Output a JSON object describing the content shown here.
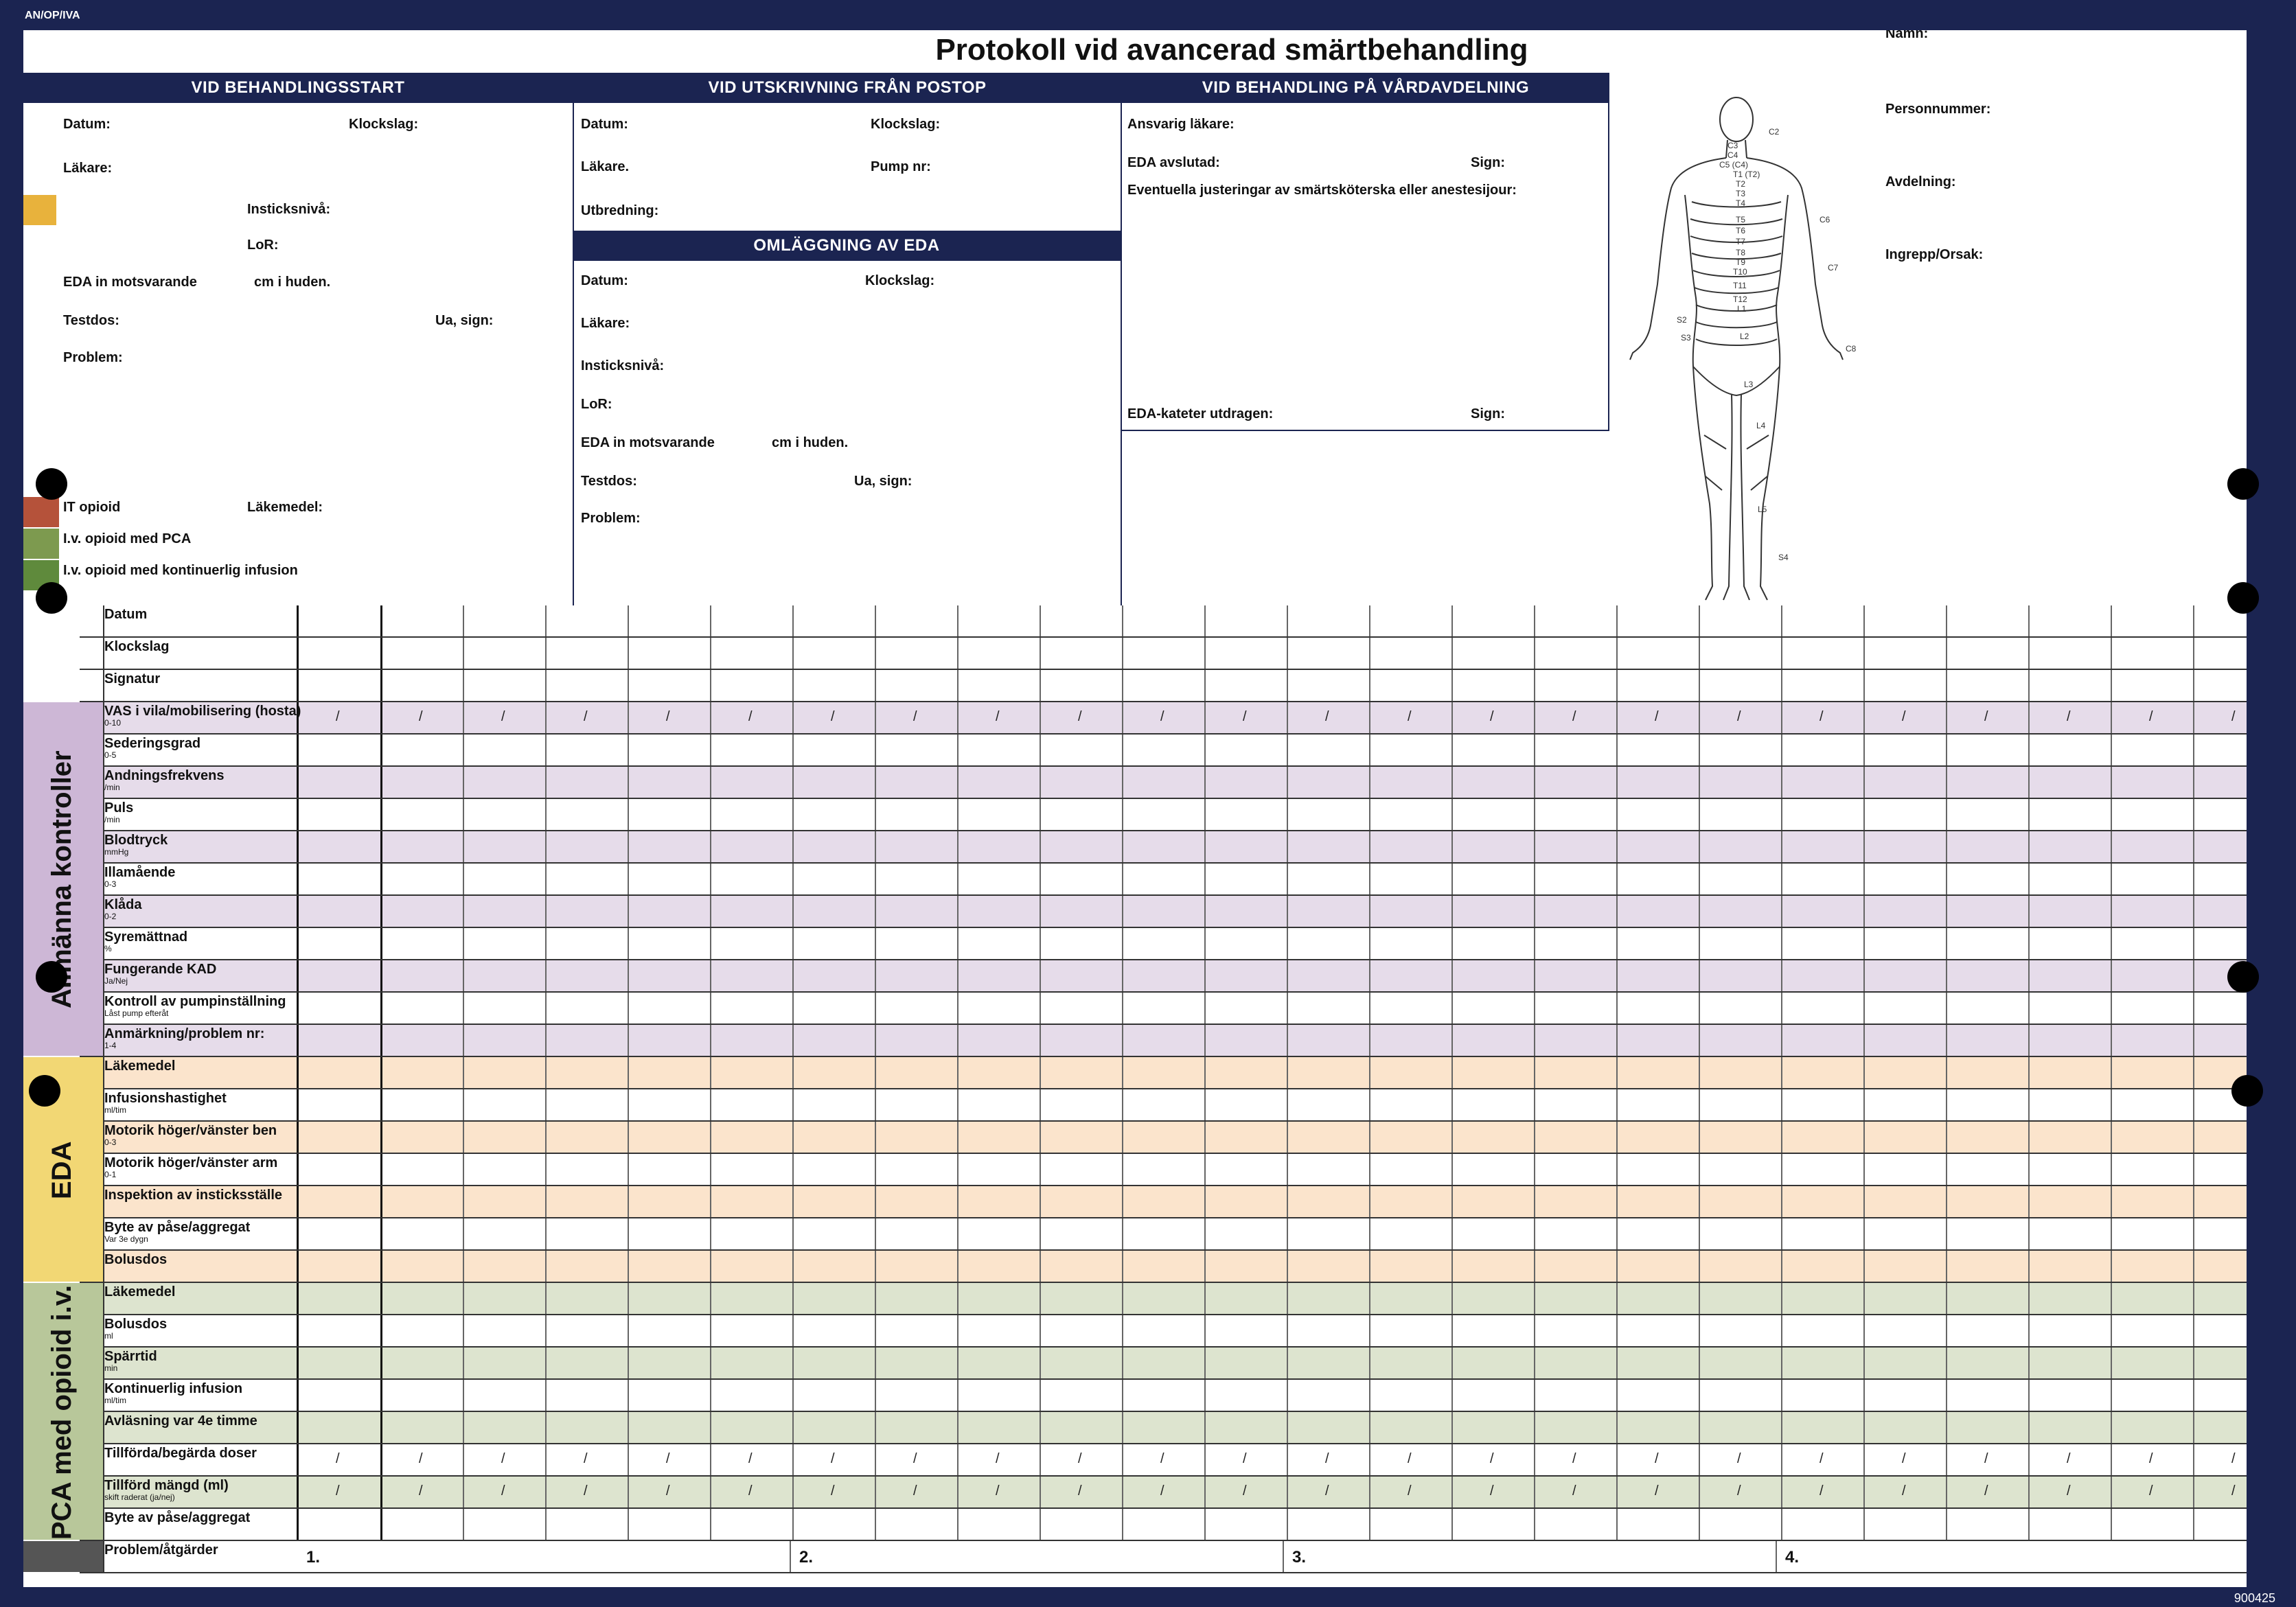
{
  "doc_code": "AN/OP/IVA",
  "footer_code": "900425",
  "title": "Protokoll vid avancerad smärtbehandling",
  "patient": {
    "namn": "Namn:",
    "personnummer": "Personnummer:",
    "avdelning": "Avdelning:",
    "ingrepp": "Ingrepp/Orsak:"
  },
  "start": {
    "header": "VID BEHANDLINGSSTART",
    "datum": "Datum:",
    "klockslag": "Klockslag:",
    "lakare": "Läkare:",
    "insticksniva": "Insticksnivå:",
    "lor": "LoR:",
    "eda_in": "EDA in motsvarande",
    "cm_huden": "cm i huden.",
    "testdos": "Testdos:",
    "ua_sign": "Ua, sign:",
    "problem": "Problem:",
    "it_opioid": "IT opioid",
    "lakemedel": "Läkemedel:",
    "iv_pca": "I.v. opioid med PCA",
    "iv_kont": "I.v. opioid med kontinuerlig infusion"
  },
  "postop": {
    "header": "VID UTSKRIVNING FRÅN POSTOP",
    "datum": "Datum:",
    "klockslag": "Klockslag:",
    "lakare": "Läkare.",
    "pump": "Pump nr:",
    "utbredning": "Utbredning:"
  },
  "omlaggning": {
    "header": "OMLÄGGNING AV EDA",
    "datum": "Datum:",
    "klockslag": "Klockslag:",
    "lakare": "Läkare:",
    "insticksniva": "Insticksnivå:",
    "lor": "LoR:",
    "eda_in": "EDA in motsvarande",
    "cm_huden": "cm i huden.",
    "testdos": "Testdos:",
    "ua_sign": "Ua, sign:",
    "problem": "Problem:"
  },
  "vard": {
    "header": "VID BEHANDLING PÅ VÅRDAVDELNING",
    "ansvarig": "Ansvarig läkare:",
    "eda_avslutad": "EDA avslutad:",
    "sign": "Sign:",
    "justeringar": "Eventuella justeringar av smärtsköterska eller anestesijour:",
    "kateter": "EDA-kateter utdragen:",
    "sign2": "Sign:"
  },
  "dermatomes": [
    "C2",
    "C3",
    "C4",
    "C5 (C4)",
    "T1 (T2)",
    "T2",
    "T3",
    "T4",
    "T5",
    "T6",
    "T7",
    "T8",
    "T9",
    "T10",
    "T11",
    "T12",
    "L1",
    "L2",
    "L3",
    "L4",
    "L5",
    "S2",
    "S3",
    "S4",
    "C6",
    "C7",
    "C8"
  ],
  "colors": {
    "navy": "#1b2451",
    "purple": "#e6dcea",
    "orange": "#fbe4cc",
    "green": "#dde4cf",
    "it_swatch": "#b5523a",
    "pca_swatch": "#7d9a4f",
    "kont_swatch": "#5f8a3c",
    "eda_swatch": "#e8b23c",
    "section_purple": "#cdb7d6",
    "section_yellow": "#f2d774",
    "section_green": "#b8c79a"
  },
  "sections": {
    "allmanna": "Allmänna kontroller",
    "eda": "EDA",
    "pca": "PCA med opioid i.v."
  },
  "rows": [
    {
      "label": "Datum",
      "sub": ""
    },
    {
      "label": "Klockslag",
      "sub": ""
    },
    {
      "label": "Signatur",
      "sub": ""
    },
    {
      "label": "VAS i vila/mobilisering (hosta)",
      "sub": "0-10"
    },
    {
      "label": "Sederingsgrad",
      "sub": "0-5"
    },
    {
      "label": "Andningsfrekvens",
      "sub": "/min"
    },
    {
      "label": "Puls",
      "sub": "/min"
    },
    {
      "label": "Blodtryck",
      "sub": "mmHg"
    },
    {
      "label": "Illamående",
      "sub": "0-3"
    },
    {
      "label": "Klåda",
      "sub": "0-2"
    },
    {
      "label": "Syremättnad",
      "sub": "%"
    },
    {
      "label": "Fungerande KAD",
      "sub": "Ja/Nej"
    },
    {
      "label": "Kontroll av pumpinställning",
      "sub": "Låst pump efteråt"
    },
    {
      "label": "Anmärkning/problem nr:",
      "sub": "1-4"
    },
    {
      "label": "Läkemedel",
      "sub": ""
    },
    {
      "label": "Infusionshastighet",
      "sub": "ml/tim"
    },
    {
      "label": "Motorik höger/vänster ben",
      "sub": "0-3"
    },
    {
      "label": "Motorik höger/vänster arm",
      "sub": "0-1"
    },
    {
      "label": "Inspektion av insticksställe",
      "sub": ""
    },
    {
      "label": "Byte av påse/aggregat",
      "sub": "Var 3e dygn"
    },
    {
      "label": "Bolusdos",
      "sub": ""
    },
    {
      "label": "Läkemedel",
      "sub": ""
    },
    {
      "label": "Bolusdos",
      "sub": "ml"
    },
    {
      "label": "Spärrtid",
      "sub": "min"
    },
    {
      "label": "Kontinuerlig infusion",
      "sub": "ml/tim"
    },
    {
      "label": "Avläsning var 4e timme",
      "sub": ""
    },
    {
      "label": "Tillförda/begärda doser",
      "sub": ""
    },
    {
      "label": "Tillförd mängd (ml)",
      "sub": "skift raderat (ja/nej)"
    },
    {
      "label": "Byte av påse/aggregat",
      "sub": ""
    },
    {
      "label": "Problem/åtgärder",
      "sub": ""
    }
  ],
  "problem_numbers": [
    "1.",
    "2.",
    "3.",
    "4."
  ],
  "slash": "/"
}
